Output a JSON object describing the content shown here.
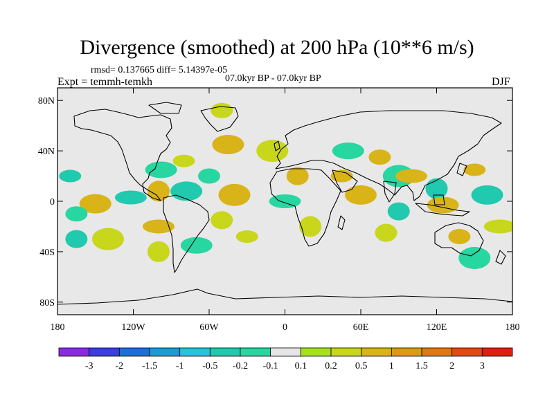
{
  "title": "Divergence (smoothed) at 200 hPa (10**6 m/s)",
  "stats": "rmsd= 0.137665 diff= 5.14397e-05",
  "period": "07.0kyr BP - 07.0kyr BP",
  "experiment": "Expt = temmh-temkh",
  "season": "DJF",
  "map": {
    "projection": "cylindrical equidistant",
    "lon_range": [
      -180,
      180
    ],
    "lat_range": [
      -90,
      90
    ],
    "background_color": "#e8e8e8",
    "lat_ticks": [
      {
        "value": 80,
        "label": "80N"
      },
      {
        "value": 40,
        "label": "40N"
      },
      {
        "value": 0,
        "label": "0"
      },
      {
        "value": -40,
        "label": "40S"
      },
      {
        "value": -80,
        "label": "80S"
      }
    ],
    "lon_ticks": [
      {
        "value": -180,
        "label": "180"
      },
      {
        "value": -120,
        "label": "120W"
      },
      {
        "value": -60,
        "label": "60W"
      },
      {
        "value": 0,
        "label": "0"
      },
      {
        "value": 60,
        "label": "60E"
      },
      {
        "value": 120,
        "label": "120E"
      },
      {
        "value": 180,
        "label": "180"
      }
    ]
  },
  "colorbar": {
    "colors": [
      "#8a2be2",
      "#3b3ee0",
      "#1b6fd8",
      "#1e9ad6",
      "#27c2dc",
      "#21c9ae",
      "#27d6a0",
      "#e6e6e6",
      "#a6e21b",
      "#c8d61c",
      "#d8b418",
      "#dc9a14",
      "#e07814",
      "#e24a12",
      "#e0200e"
    ],
    "labels": [
      "-3",
      "-2",
      "-1.5",
      "-1",
      "-0.5",
      "-0.2",
      "-0.1",
      "0.1",
      "0.2",
      "0.5",
      "1",
      "1.5",
      "2",
      "3"
    ]
  },
  "chart_data": {
    "type": "heatmap",
    "variable": "Divergence (smoothed) at 200 hPa",
    "units": "10**6 m/s",
    "x": "longitude",
    "y": "latitude",
    "levels": [
      -3,
      -2,
      -1.5,
      -1,
      -0.5,
      -0.2,
      -0.1,
      0.1,
      0.2,
      0.5,
      1,
      1.5,
      2,
      3
    ],
    "xlim": [
      -180,
      180
    ],
    "ylim": [
      -90,
      90
    ],
    "features": [
      {
        "lon": -170,
        "lat": 20,
        "value": -0.5
      },
      {
        "lon": -150,
        "lat": -2,
        "value": 0.5
      },
      {
        "lon": -165,
        "lat": -10,
        "value": -0.2
      },
      {
        "lon": -140,
        "lat": -30,
        "value": 0.2
      },
      {
        "lon": -165,
        "lat": -30,
        "value": -0.5
      },
      {
        "lon": -122,
        "lat": 3,
        "value": -0.5
      },
      {
        "lon": -100,
        "lat": 8,
        "value": 0.5
      },
      {
        "lon": -98,
        "lat": 25,
        "value": -0.2
      },
      {
        "lon": -80,
        "lat": 32,
        "value": 0.2
      },
      {
        "lon": -78,
        "lat": 8,
        "value": -0.5
      },
      {
        "lon": -60,
        "lat": 20,
        "value": -0.2
      },
      {
        "lon": -40,
        "lat": 5,
        "value": 0.5
      },
      {
        "lon": -50,
        "lat": -15,
        "value": 0.2
      },
      {
        "lon": -100,
        "lat": -20,
        "value": 0.5
      },
      {
        "lon": -100,
        "lat": -40,
        "value": 0.2
      },
      {
        "lon": -70,
        "lat": -35,
        "value": -0.2
      },
      {
        "lon": -30,
        "lat": -28,
        "value": 0.2
      },
      {
        "lon": -45,
        "lat": 45,
        "value": 0.5
      },
      {
        "lon": -50,
        "lat": 72,
        "value": 0.2
      },
      {
        "lon": -10,
        "lat": 40,
        "value": 0.2
      },
      {
        "lon": 10,
        "lat": 20,
        "value": 0.5
      },
      {
        "lon": 0,
        "lat": 0,
        "value": -0.2
      },
      {
        "lon": 20,
        "lat": -20,
        "value": 0.2
      },
      {
        "lon": 50,
        "lat": 40,
        "value": -0.2
      },
      {
        "lon": 45,
        "lat": 20,
        "value": 0.5
      },
      {
        "lon": 60,
        "lat": 5,
        "value": 0.5
      },
      {
        "lon": 75,
        "lat": 35,
        "value": 0.5
      },
      {
        "lon": 90,
        "lat": 20,
        "value": -0.2
      },
      {
        "lon": 90,
        "lat": -8,
        "value": -0.5
      },
      {
        "lon": 100,
        "lat": 20,
        "value": 0.5
      },
      {
        "lon": 120,
        "lat": 10,
        "value": -0.5
      },
      {
        "lon": 125,
        "lat": -3,
        "value": 0.5
      },
      {
        "lon": 150,
        "lat": 25,
        "value": 0.5
      },
      {
        "lon": 160,
        "lat": 5,
        "value": -0.5
      },
      {
        "lon": 138,
        "lat": -28,
        "value": 0.5
      },
      {
        "lon": 150,
        "lat": -45,
        "value": -0.2
      },
      {
        "lon": 80,
        "lat": -25,
        "value": 0.2
      },
      {
        "lon": 170,
        "lat": -20,
        "value": 0.2
      }
    ]
  }
}
